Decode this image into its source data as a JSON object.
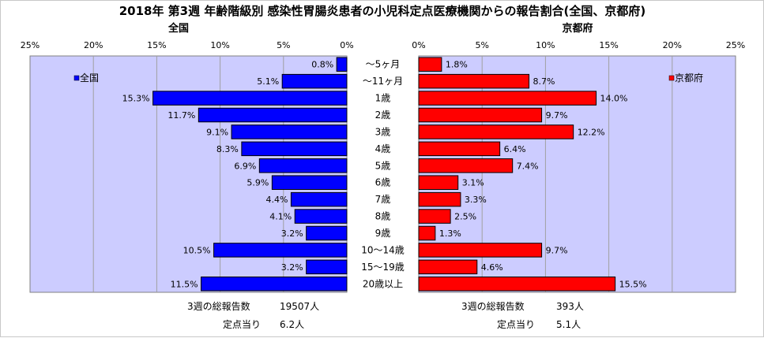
{
  "chart_data": {
    "type": "bar",
    "title": "2018年 第3週 年齢階級別 感染性胃腸炎患者の小児科定点医療機関からの報告割合(全国、京都府)",
    "categories": [
      "～5ヶ月",
      "～11ヶ月",
      "1歳",
      "2歳",
      "3歳",
      "4歳",
      "5歳",
      "6歳",
      "7歳",
      "8歳",
      "9歳",
      "10～14歳",
      "15～19歳",
      "20歳以上"
    ],
    "xlim": [
      0,
      25
    ],
    "x_ticks": [
      "0%",
      "5%",
      "10%",
      "15%",
      "20%",
      "25%"
    ],
    "grid": true,
    "series": [
      {
        "name": "全国",
        "panel_label": "全国",
        "color": "#0000ff",
        "legend_position": "top-left",
        "values": [
          0.8,
          5.1,
          15.3,
          11.7,
          9.1,
          8.3,
          6.9,
          5.9,
          4.4,
          4.1,
          3.2,
          10.5,
          3.2,
          11.5
        ],
        "labels": [
          "0.8%",
          "5.1%",
          "15.3%",
          "11.7%",
          "9.1%",
          "8.3%",
          "6.9%",
          "5.9%",
          "4.4%",
          "4.1%",
          "3.2%",
          "10.5%",
          "3.2%",
          "11.5%"
        ]
      },
      {
        "name": "京都府",
        "panel_label": "京都府",
        "color": "#ff0000",
        "legend_position": "top-right",
        "values": [
          1.8,
          8.7,
          14.0,
          9.7,
          12.2,
          6.4,
          7.4,
          3.1,
          3.3,
          2.5,
          1.3,
          9.7,
          4.6,
          15.5
        ],
        "labels": [
          "1.8%",
          "8.7%",
          "14.0%",
          "9.7%",
          "12.2%",
          "6.4%",
          "7.4%",
          "3.1%",
          "3.3%",
          "2.5%",
          "1.3%",
          "9.7%",
          "4.6%",
          "15.5%"
        ]
      }
    ]
  },
  "footer": {
    "left_total_label": "3週の総報告数",
    "left_total_value": "19507人",
    "left_per_label": "定点当り",
    "left_per_value": "6.2人",
    "right_total_label": "3週の総報告数",
    "right_total_value": "393人",
    "right_per_label": "定点当り",
    "right_per_value": "5.1人"
  },
  "colors": {
    "plot_background": "#ccccff",
    "grid": "#a0a0a0",
    "bar_outline": "#000000"
  }
}
